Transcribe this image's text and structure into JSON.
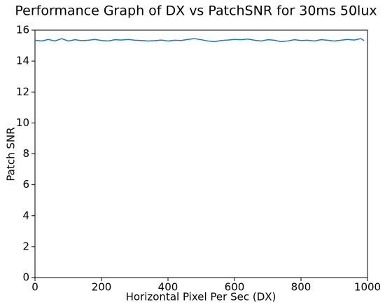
{
  "chart_data": {
    "type": "line",
    "title": "Performance Graph of DX vs PatchSNR for 30ms 50lux",
    "x_label": "Horizontal Pixel Per Sec (DX)",
    "y_label": "Patch SNR",
    "x": [
      0,
      20,
      40,
      60,
      80,
      100,
      120,
      140,
      160,
      180,
      200,
      220,
      240,
      260,
      280,
      300,
      320,
      340,
      360,
      380,
      400,
      420,
      440,
      460,
      480,
      500,
      520,
      540,
      560,
      580,
      600,
      620,
      640,
      660,
      680,
      700,
      720,
      740,
      760,
      780,
      800,
      820,
      840,
      860,
      880,
      900,
      920,
      940,
      960,
      980,
      990
    ],
    "series": [
      {
        "color": "#1f77b4",
        "values": [
          15.35,
          15.3,
          15.4,
          15.3,
          15.45,
          15.3,
          15.38,
          15.32,
          15.35,
          15.4,
          15.33,
          15.3,
          15.38,
          15.36,
          15.4,
          15.35,
          15.33,
          15.3,
          15.32,
          15.36,
          15.3,
          15.35,
          15.33,
          15.4,
          15.45,
          15.38,
          15.3,
          15.25,
          15.33,
          15.36,
          15.4,
          15.38,
          15.42,
          15.35,
          15.3,
          15.38,
          15.35,
          15.25,
          15.3,
          15.38,
          15.33,
          15.35,
          15.3,
          15.38,
          15.35,
          15.3,
          15.35,
          15.4,
          15.36,
          15.45,
          15.32
        ]
      }
    ],
    "xlim": [
      0,
      1000
    ],
    "xticks": [
      0,
      200,
      400,
      600,
      800,
      1000
    ],
    "ylim": [
      0,
      16
    ],
    "yticks": [
      0,
      2,
      4,
      6,
      8,
      10,
      12,
      14,
      16
    ],
    "grid": false
  }
}
